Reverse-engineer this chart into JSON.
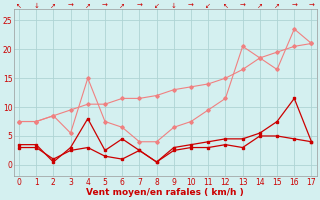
{
  "x": [
    0,
    1,
    2,
    3,
    4,
    5,
    6,
    7,
    8,
    9,
    10,
    11,
    12,
    13,
    14,
    15,
    16,
    17
  ],
  "line_light_trend": [
    7.5,
    7.5,
    8.5,
    9.5,
    10.5,
    10.5,
    11.5,
    11.5,
    12.0,
    13.0,
    13.5,
    14.0,
    15.0,
    16.5,
    18.5,
    19.5,
    20.5,
    21.0
  ],
  "line_light_zigzag": [
    7.5,
    7.5,
    8.5,
    5.5,
    15.0,
    7.5,
    6.5,
    4.0,
    4.0,
    6.5,
    7.5,
    9.5,
    11.5,
    20.5,
    18.5,
    16.5,
    23.5,
    21.0
  ],
  "line_dark": [
    3.5,
    3.5,
    0.5,
    3.0,
    8.0,
    2.5,
    4.5,
    2.5,
    0.5,
    3.0,
    3.5,
    4.0,
    4.5,
    4.5,
    5.5,
    7.5,
    11.5,
    4.0
  ],
  "line_dark2": [
    3.0,
    3.0,
    1.0,
    2.5,
    3.0,
    1.5,
    1.0,
    2.5,
    0.5,
    2.5,
    3.0,
    3.0,
    3.5,
    3.0,
    5.0,
    5.0,
    4.5,
    4.0
  ],
  "color_light": "#f08080",
  "color_dark": "#cc0000",
  "bg_color": "#d4f0f0",
  "grid_color": "#aed4d4",
  "xlabel": "Vent moyen/en rafales ( km/h )",
  "ylim": [
    -2,
    27
  ],
  "xlim": [
    -0.3,
    17.3
  ],
  "yticks": [
    0,
    5,
    10,
    15,
    20,
    25
  ],
  "xticks": [
    0,
    1,
    2,
    3,
    4,
    5,
    6,
    7,
    8,
    9,
    10,
    11,
    12,
    13,
    14,
    15,
    16,
    17
  ],
  "arrows": [
    "↖",
    "↓",
    "↗",
    "→",
    "↗",
    "→",
    "↗",
    "→",
    "↙",
    "↓",
    "→",
    "↙",
    "↖",
    "→",
    "↗",
    "↗",
    "→",
    "→"
  ]
}
